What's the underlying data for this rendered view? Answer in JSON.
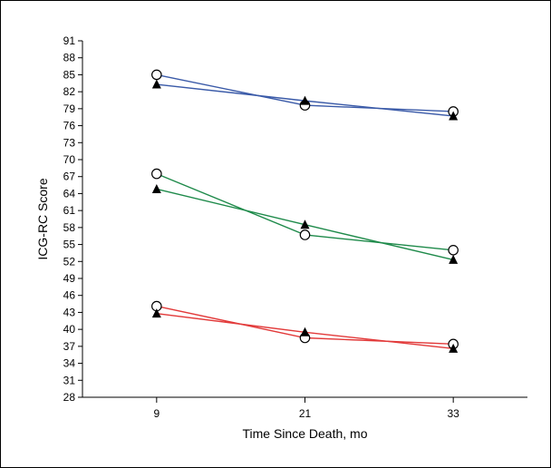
{
  "chart_data": {
    "type": "line",
    "title": "",
    "xlabel": "Time Since Death, mo",
    "ylabel": "ICG-RC Score",
    "x": [
      9,
      21,
      33
    ],
    "x_tick_labels": [
      "9",
      "21",
      "33"
    ],
    "xlim": [
      3,
      39
    ],
    "ylim": [
      28,
      91
    ],
    "y_tick_labels": [
      "28",
      "31",
      "34",
      "37",
      "40",
      "43",
      "46",
      "49",
      "52",
      "55",
      "58",
      "61",
      "64",
      "67",
      "70",
      "73",
      "76",
      "79",
      "82",
      "85",
      "88",
      "91"
    ],
    "grid": false,
    "legend": "none",
    "marker_open": "open-circle",
    "marker_filled": "filled-triangle",
    "series": [
      {
        "color": "#3a5aa8",
        "marker": "open-circle",
        "values": [
          85.0,
          79.6,
          78.5
        ]
      },
      {
        "color": "#3a5aa8",
        "marker": "filled-triangle",
        "values": [
          83.3,
          80.4,
          77.7
        ]
      },
      {
        "color": "#1e8a4a",
        "marker": "open-circle",
        "values": [
          67.5,
          56.7,
          54.0
        ]
      },
      {
        "color": "#1e8a4a",
        "marker": "filled-triangle",
        "values": [
          64.8,
          58.5,
          52.3
        ]
      },
      {
        "color": "#e23a3a",
        "marker": "open-circle",
        "values": [
          44.1,
          38.5,
          37.4
        ]
      },
      {
        "color": "#e23a3a",
        "marker": "filled-triangle",
        "values": [
          42.8,
          39.5,
          36.6
        ]
      }
    ]
  }
}
